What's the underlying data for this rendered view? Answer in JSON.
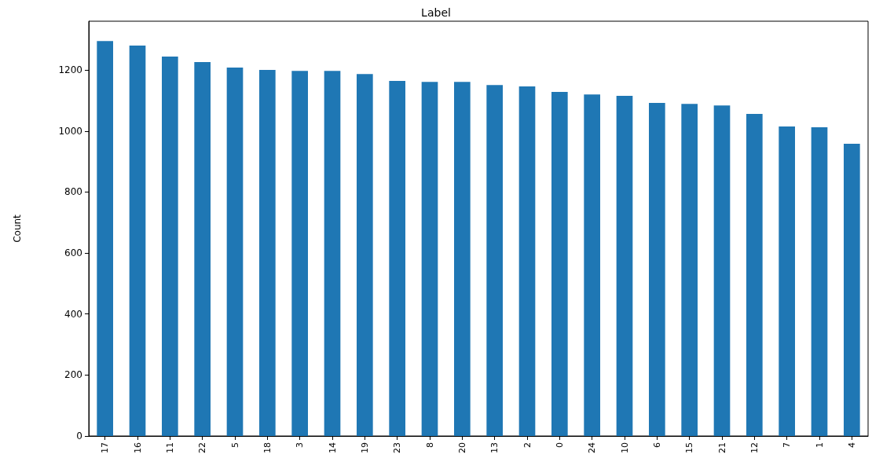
{
  "chart_data": {
    "type": "bar",
    "title": "Label",
    "ylabel": "Count",
    "categories": [
      "17",
      "16",
      "11",
      "22",
      "5",
      "18",
      "3",
      "14",
      "19",
      "23",
      "8",
      "20",
      "13",
      "2",
      "0",
      "24",
      "10",
      "6",
      "15",
      "21",
      "12",
      "7",
      "1",
      "4"
    ],
    "values": [
      1295,
      1280,
      1244,
      1226,
      1208,
      1200,
      1197,
      1197,
      1187,
      1164,
      1161,
      1161,
      1151,
      1146,
      1128,
      1120,
      1115,
      1092,
      1089,
      1084,
      1056,
      1015,
      1012,
      958
    ],
    "color": "#1f77b4",
    "ylim": [
      0,
      1360
    ],
    "yticks": [
      0,
      200,
      400,
      600,
      800,
      1000,
      1200
    ],
    "grid": false
  }
}
